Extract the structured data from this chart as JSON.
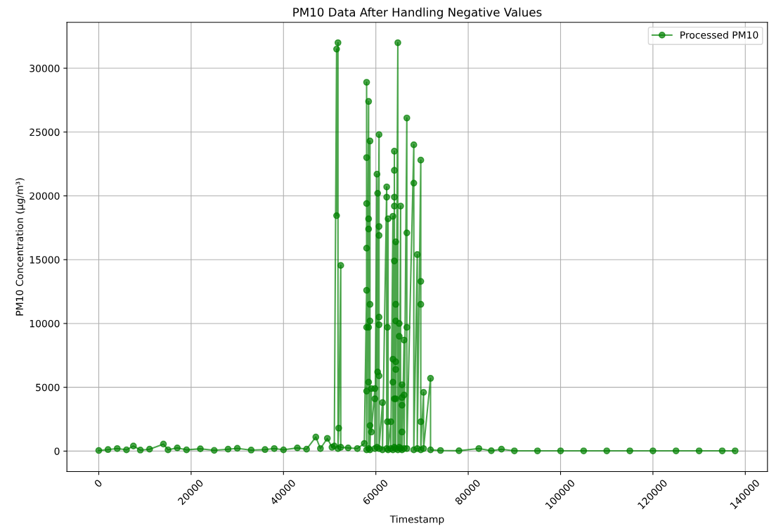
{
  "chart_data": {
    "type": "line",
    "title": "PM10 Data After Handling Negative Values",
    "xlabel": "Timestamp",
    "ylabel": "PM10 Concentration (µg/m³)",
    "xlim": [
      -6900,
      144800
    ],
    "ylim": [
      -1600,
      33600
    ],
    "xticks": [
      0,
      20000,
      40000,
      60000,
      80000,
      100000,
      120000,
      140000
    ],
    "yticks": [
      0,
      5000,
      10000,
      15000,
      20000,
      25000,
      30000
    ],
    "grid": true,
    "legend": "top right",
    "marker": "circle",
    "line_style": "solid",
    "x": [
      0,
      2000,
      4000,
      6000,
      7500,
      9000,
      11000,
      14000,
      15000,
      17000,
      19000,
      22000,
      25000,
      28000,
      30000,
      33000,
      36000,
      38000,
      40000,
      43000,
      45000,
      47000,
      48000,
      49500,
      50500,
      51000,
      51500,
      51500,
      51800,
      51800,
      51960,
      52400,
      52400,
      54000,
      56000,
      57500,
      58000,
      58000,
      58000,
      58000,
      58000,
      58000,
      58000,
      58000,
      58430,
      58430,
      58430,
      58430,
      58430,
      58430,
      58730,
      58730,
      58730,
      58730,
      58730,
      59030,
      59030,
      59790,
      59790,
      59790,
      60240,
      60240,
      60390,
      60390,
      60690,
      60690,
      60690,
      60690,
      60690,
      60690,
      60690,
      61440,
      61440,
      62350,
      62350,
      62350,
      62500,
      62500,
      62650,
      62650,
      63250,
      63250,
      63700,
      63700,
      63700,
      63700,
      64010,
      64010,
      64010,
      64010,
      64010,
      64010,
      64010,
      64310,
      64310,
      64310,
      64310,
      64310,
      64310,
      64310,
      64760,
      64760,
      65060,
      65060,
      65060,
      65360,
      65360,
      65660,
      65660,
      65660,
      65660,
      65660,
      66110,
      66110,
      66110,
      66710,
      66710,
      66710,
      66710,
      68220,
      68220,
      68220,
      68970,
      68970,
      69730,
      69730,
      69730,
      69730,
      69730,
      70330,
      70330,
      71840,
      71840,
      74000,
      78000,
      82300,
      85000,
      87200,
      90000,
      95000,
      100000,
      105000,
      110000,
      115000,
      120000,
      125000,
      130000,
      135000,
      137800
    ],
    "series": [
      {
        "name": "Processed PM10",
        "color": "#008000",
        "values": [
          50,
          120,
          200,
          100,
          400,
          80,
          150,
          550,
          100,
          250,
          100,
          180,
          60,
          150,
          220,
          80,
          120,
          200,
          100,
          250,
          150,
          1100,
          200,
          1000,
          300,
          400,
          31500,
          18450,
          32000,
          200,
          1800,
          14550,
          300,
          250,
          200,
          600,
          12600,
          28900,
          4700,
          23000,
          9700,
          19400,
          15900,
          100,
          27400,
          9700,
          18200,
          5400,
          17400,
          200,
          24300,
          2000,
          11500,
          10200,
          100,
          4900,
          1500,
          4900,
          4100,
          200,
          21700,
          300,
          20200,
          6200,
          24800,
          5900,
          17600,
          10500,
          16900,
          9900,
          200,
          3800,
          100,
          20700,
          19900,
          200,
          9700,
          2300,
          18200,
          100,
          2300,
          200,
          18400,
          5400,
          7200,
          100,
          19900,
          14900,
          22000,
          4100,
          23500,
          19200,
          300,
          16400,
          7000,
          11500,
          4100,
          10200,
          6400,
          200,
          32000,
          100,
          10000,
          9000,
          300,
          19200,
          200,
          5200,
          1500,
          3600,
          4200,
          100,
          8700,
          4400,
          200,
          26100,
          17100,
          9700,
          200,
          24000,
          21000,
          100,
          15400,
          200,
          22800,
          2300,
          13300,
          11500,
          100,
          4600,
          200,
          5700,
          100,
          50,
          30,
          200,
          30,
          150,
          20,
          20,
          20,
          20,
          20,
          20,
          20,
          20,
          20,
          20,
          20
        ]
      }
    ]
  }
}
